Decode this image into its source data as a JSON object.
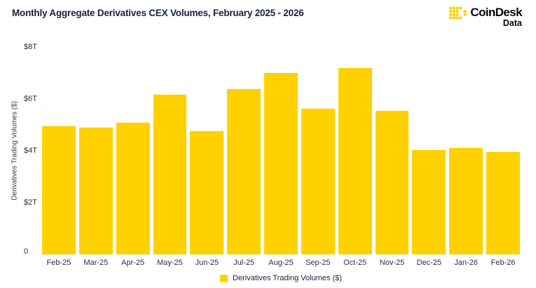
{
  "header": {
    "title": "Monthly Aggregate Derivatives CEX Volumes, February 2025 - 2026",
    "logo": {
      "brand": "CoinDesk",
      "sub": "Data"
    }
  },
  "chart_data": {
    "type": "bar",
    "title": "Monthly Aggregate Derivatives CEX Volumes, February 2025 - 2026",
    "categories": [
      "Feb-25",
      "Mar-25",
      "Apr-25",
      "May-25",
      "Jun-25",
      "Jul-25",
      "Aug-25",
      "Sep-25",
      "Oct-25",
      "Nov-25",
      "Dec-25",
      "Jan-26",
      "Feb-26"
    ],
    "values": [
      4.95,
      4.88,
      5.09,
      6.15,
      4.77,
      6.39,
      6.99,
      5.62,
      7.19,
      5.53,
      4.04,
      4.1,
      3.96
    ],
    "unit": "trillion USD",
    "xlabel": "",
    "ylabel": "Derivatives Trading Volumes ($)",
    "ylim": [
      0,
      8
    ],
    "yticks": [
      {
        "value": 8,
        "label": "$8T"
      },
      {
        "value": 6,
        "label": "$6T"
      },
      {
        "value": 4,
        "label": "$4T"
      },
      {
        "value": 2,
        "label": "$2T"
      },
      {
        "value": 0,
        "label": "0"
      }
    ],
    "grid": false,
    "legend": "Derivatives Trading Volumes ($)",
    "legend_position": "bottom-center",
    "bar_color": "#FFD100"
  },
  "colors": {
    "accent": "#FFD100",
    "title_text": "#17233C",
    "axis_text": "#24324A",
    "logo_text": "#060709",
    "background": "#FFFFFF"
  }
}
